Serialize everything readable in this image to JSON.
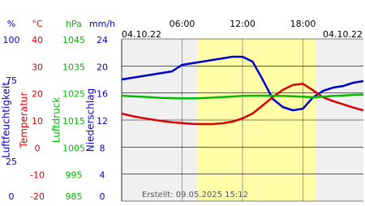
{
  "chart_data": {
    "type": "line",
    "start_date": "04.10.22",
    "end_date": "04.10.22",
    "footer": "Erstellt: 09.05.2025 15:12",
    "x": [
      0,
      1,
      2,
      3,
      4,
      5,
      6,
      7,
      8,
      9,
      10,
      11,
      12,
      13,
      14,
      15,
      16,
      17,
      18,
      19,
      20,
      21,
      22,
      23,
      24
    ],
    "xlim": [
      0,
      24
    ],
    "xticks": [
      {
        "value": 6,
        "label": "06:00"
      },
      {
        "value": 12,
        "label": "12:00"
      },
      {
        "value": 18,
        "label": "18:00"
      }
    ],
    "daylight": [
      7.5,
      19.25
    ],
    "axes": [
      {
        "unit": "%",
        "label": "Luftfeuchtigkeit",
        "color": "#0000cc",
        "ylim": [
          0,
          100
        ],
        "yticks": [
          0,
          25,
          75,
          100
        ]
      },
      {
        "unit": "°C",
        "label": "Temperatur",
        "color": "#dd0000",
        "ylim": [
          -20,
          40
        ],
        "yticks": [
          -20,
          -10,
          0,
          10,
          20,
          30,
          40
        ]
      },
      {
        "unit": "hPa",
        "label": "Luftdruck",
        "color": "#00bb00",
        "ylim": [
          985,
          1045
        ],
        "yticks": [
          985,
          995,
          1005,
          1015,
          1025,
          1035,
          1045
        ]
      },
      {
        "unit": "mm/h",
        "label": "Niederschlag",
        "color": "#0000cc",
        "ylim": [
          0,
          24
        ],
        "yticks": [
          0,
          4,
          8,
          12,
          16,
          20,
          24
        ]
      }
    ],
    "series": [
      {
        "name": "Luftfeuchtigkeit",
        "axis": 0,
        "color": "#0000cc",
        "values": [
          75,
          76,
          77,
          78,
          79,
          80,
          84,
          85,
          86,
          87,
          88,
          89,
          89,
          86,
          75,
          63,
          58,
          56,
          57,
          64,
          68,
          70,
          71,
          73,
          74
        ]
      },
      {
        "name": "Temperatur",
        "axis": 1,
        "color": "#dd0000",
        "values": [
          12.4,
          11.5,
          10.8,
          10.2,
          9.6,
          9.2,
          8.9,
          8.6,
          8.5,
          8.5,
          8.8,
          9.4,
          10.6,
          12.4,
          15.4,
          18.5,
          21.2,
          23.0,
          23.4,
          21.0,
          18.4,
          17.0,
          15.8,
          14.6,
          13.6
        ]
      },
      {
        "name": "Luftdruck",
        "axis": 2,
        "color": "#00bb00",
        "values": [
          1024,
          1023.8,
          1023.6,
          1023.4,
          1023.2,
          1023.1,
          1023,
          1023,
          1023.1,
          1023.3,
          1023.5,
          1023.7,
          1023.9,
          1024,
          1024,
          1024,
          1023.9,
          1023.8,
          1023.6,
          1023.4,
          1023.6,
          1023.9,
          1024.1,
          1024.3,
          1024.4
        ]
      }
    ],
    "grid_axis": 1
  }
}
